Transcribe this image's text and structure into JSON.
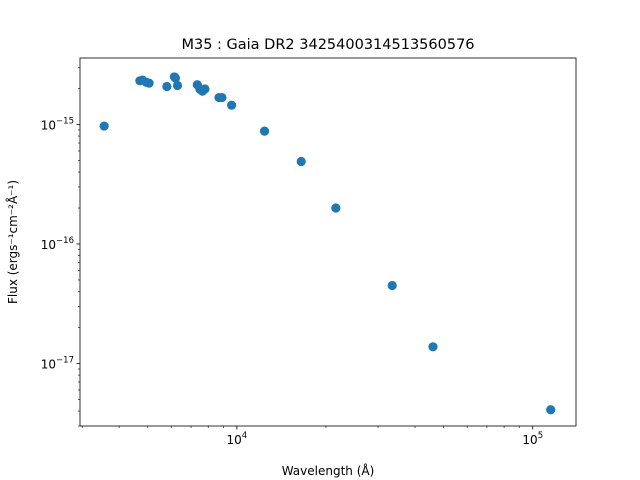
{
  "chart_data": {
    "type": "scatter",
    "title": "M35 : Gaia DR2 3425400314513560576",
    "xlabel": "Wavelength (Å)",
    "ylabel": "Flux (ergs⁻¹cm⁻²Å⁻¹)",
    "x_scale": "log",
    "y_scale": "log",
    "xlim": [
      2950,
      140000
    ],
    "ylim": [
      3e-18,
      3.6e-15
    ],
    "grid": false,
    "legend": "none",
    "marker_color": "#1f77b4",
    "x_ticks": [
      {
        "value": 10000,
        "base": "10",
        "exp": "4"
      },
      {
        "value": 100000,
        "base": "10",
        "exp": "5"
      }
    ],
    "y_ticks": [
      {
        "value": 1e-15,
        "base": "10",
        "exp": "−15"
      },
      {
        "value": 1e-16,
        "base": "10",
        "exp": "−16"
      },
      {
        "value": 1e-17,
        "base": "10",
        "exp": "−17"
      }
    ],
    "x": [
      3560,
      4700,
      4800,
      4950,
      5050,
      5800,
      6150,
      6200,
      6300,
      7350,
      7500,
      7650,
      7800,
      8700,
      8900,
      9600,
      12400,
      16500,
      21600,
      33500,
      46000,
      115000
    ],
    "y": [
      9.7e-16,
      2.32e-15,
      2.35e-15,
      2.25e-15,
      2.22e-15,
      2.08e-15,
      2.5e-15,
      2.45e-15,
      2.12e-15,
      2.15e-15,
      1.97e-15,
      1.9e-15,
      1.98e-15,
      1.68e-15,
      1.68e-15,
      1.45e-15,
      8.8e-16,
      4.9e-16,
      2e-16,
      4.5e-17,
      1.38e-17,
      4.1e-18
    ]
  }
}
